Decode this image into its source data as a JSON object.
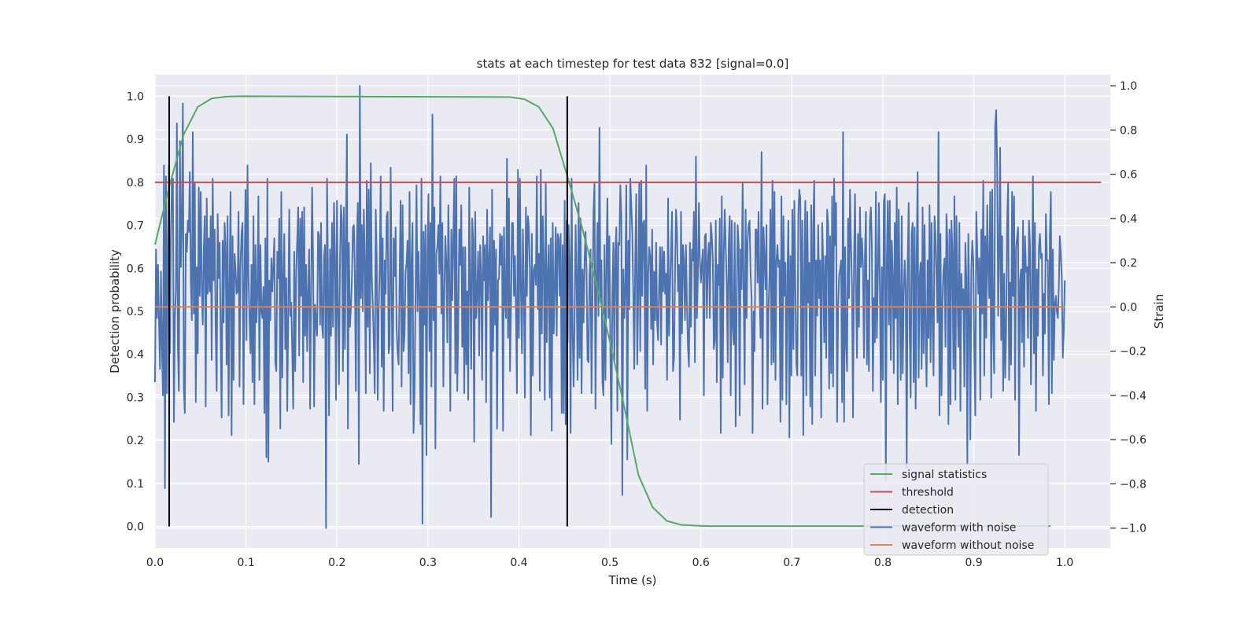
{
  "chart_data": {
    "type": "line",
    "title": "stats at each timestep for test data 832 [signal=0.0]",
    "xlabel": "Time (s)",
    "ylabel": "Detection probability",
    "y2label": "Strain",
    "xlim": [
      0.0,
      1.05
    ],
    "ylim": [
      -0.05,
      1.05
    ],
    "y2lim": [
      -1.09,
      1.05
    ],
    "xticks": [
      "0.0",
      "0.1",
      "0.2",
      "0.3",
      "0.4",
      "0.5",
      "0.6",
      "0.7",
      "0.8",
      "0.9",
      "1.0"
    ],
    "yticks": [
      "0.0",
      "0.1",
      "0.2",
      "0.3",
      "0.4",
      "0.5",
      "0.6",
      "0.7",
      "0.8",
      "0.9",
      "1.0"
    ],
    "y2ticks": [
      "−1.0",
      "−0.8",
      "−0.6",
      "−0.4",
      "−0.2",
      "0.0",
      "0.2",
      "0.4",
      "0.6",
      "0.8",
      "1.0"
    ],
    "grid": true,
    "legend_position": "lower-right",
    "series": [
      {
        "name": "signal statistics",
        "color": "#55a868",
        "axis": "left",
        "x": [
          0.0,
          0.0156,
          0.0313,
          0.0469,
          0.0625,
          0.0781,
          0.0938,
          0.3906,
          0.4063,
          0.4219,
          0.4375,
          0.4531,
          0.4688,
          0.4844,
          0.5,
          0.5156,
          0.5313,
          0.5469,
          0.5625,
          0.5781,
          0.5938,
          0.6094,
          0.65,
          0.9844
        ],
        "values": [
          0.655,
          0.79,
          0.91,
          0.975,
          0.995,
          0.999,
          1.0,
          0.998,
          0.993,
          0.975,
          0.925,
          0.815,
          0.7,
          0.57,
          0.43,
          0.28,
          0.12,
          0.045,
          0.013,
          0.004,
          0.002,
          0.001,
          0.001,
          0.001
        ]
      },
      {
        "name": "threshold",
        "color": "#c44e52",
        "axis": "left",
        "x": [
          0.0,
          1.04
        ],
        "values": [
          0.8,
          0.8
        ]
      },
      {
        "name": "detection",
        "color": "#000000",
        "axis": "left",
        "segments": [
          {
            "x": 0.0156,
            "y0": 0.0,
            "y1": 1.0
          },
          {
            "x": 0.4531,
            "y0": 0.0,
            "y1": 1.0
          }
        ]
      },
      {
        "name": "waveform with noise",
        "color": "#4c72b0",
        "axis": "right",
        "x_range": [
          0.0,
          1.0
        ],
        "values": [
          -0.34,
          0.26,
          -0.05,
          0.19,
          -0.06,
          -0.28,
          0.16,
          -0.19,
          -0.4,
          0.64,
          -0.82,
          0.59,
          -0.39,
          0.29,
          0.64,
          -0.21,
          0.31,
          0.57,
          0.58,
          -0.52,
          -0.05,
          0.08,
          0.83,
          -0.18,
          -0.38,
          0.75,
          0.18,
          0.38,
          0.92,
          -0.37,
          -0.48,
          0.33,
          0.25,
          0.39,
          0.34,
          0.61,
          0.12,
          -0.06,
          0.79,
          -0.03,
          0.56,
          -0.43,
          0.18,
          -0.21,
          0.54,
          0.05,
          0.52,
          0.09,
          -0.08,
          0.25,
          0.41,
          -0.45,
          0.49,
          0.06,
          0.31,
          0.07,
          0.41,
          -0.24,
          0.58,
          0.12,
          0.35,
          -0.11,
          -0.38,
          0.42,
          0.13,
          0.29,
          -0.13,
          -0.5,
          0.3,
          -0.07,
          0.38,
          0.28,
          -0.26,
          0.41,
          -0.49,
          0.11,
          0.52,
          -0.58,
          0.32,
          -0.33,
          0.24,
          0.17,
          0.06,
          0.07,
          0.43,
          -0.36,
          0.19,
          0.33,
          0.38,
          -0.44,
          0.13,
          0.53,
          -0.15,
          0.64,
          0.14,
          -0.05,
          -0.21,
          0.19,
          -0.34,
          0.41,
          -0.44,
          0.28,
          -0.07,
          0.06,
          0.5,
          -0.33,
          0.28,
          -0.02,
          -0.05,
          0.09,
          -0.48,
          0.31,
          -0.68,
          0.58,
          -0.7,
          0.12,
          -0.06,
          0.22,
          0.07,
          0.19,
          0.31,
          -0.25,
          -0.29,
          0.25,
          0.13,
          0.4,
          -0.55,
          0.52,
          -0.32,
          0.14,
          0.33,
          -0.19,
          0.13,
          -0.47,
          -0.02,
          0.44,
          -0.04,
          0.02,
          -0.19,
          -0.46,
          0.25,
          -0.29,
          0.16,
          0.3,
          0.45,
          -0.22,
          0.4,
          0.05,
          0.43,
          -0.34,
          0.45,
          -0.13,
          0.19,
          -0.2,
          0.07,
          0.26,
          -0.46,
          0.09,
          0.54,
          0.2,
          -0.45,
          0.01,
          -0.07,
          -0.13,
          0.34,
          0.32,
          -0.08,
          0.38,
          -0.08,
          -0.14,
          0.23,
          0.28,
          -1.0,
          0.58,
          0.13,
          -0.49,
          0.26,
          -0.13,
          0.38,
          -0.09,
          0.47,
          0.23,
          -0.42,
          0.48,
          -0.01,
          -0.35,
          0.19,
          0.46,
          0.38,
          -0.29,
          0.45,
          -0.19,
          0.31,
          0.78,
          -0.55,
          0.29,
          -0.09,
          -0.01,
          0.12,
          0.36,
          0.37,
          0.14,
          -0.38,
          0.3,
          0.47,
          -0.71,
          1.0,
          0.04,
          0.37,
          -0.02,
          0.44,
          0.21,
          -0.39,
          0.57,
          -0.09,
          0.53,
          -0.3,
          0.65,
          0.14,
          0.01,
          -0.15,
          -0.39,
          0.44,
          0.21,
          -0.42,
          -0.01,
          0.18,
          0.59,
          -0.27,
          0.31,
          -0.47,
          0.21,
          0.06,
          0.41,
          0.43,
          -0.21,
          -0.17,
          0.63,
          0.08,
          -0.47,
          0.31,
          0.14,
          0.36,
          -0.1,
          -0.21,
          -0.26,
          0.12,
          0.48,
          -0.36,
          0.46,
          -0.2,
          -0.12,
          0.16,
          0.2,
          0.3,
          -0.3,
          0.52,
          -0.44,
          0.21,
          0.38,
          -0.57,
          -0.39,
          0.05,
          0.55,
          -0.02,
          0.25,
          0.03,
          -0.53,
          0.58,
          -0.98,
          0.34,
          -0.08,
          0.37,
          -0.67,
          0.24,
          0.51,
          -0.2,
          0.38,
          -0.36,
          0.87,
          -0.06,
          0.45,
          -0.64,
          0.24,
          0.28,
          0.37,
          0.15,
          0.59,
          -0.03,
          0.38,
          -0.36,
          0.07,
          0.32,
          0.2,
          -0.16,
          0.46,
          0.14,
          -0.47,
          0.35,
          0.03,
          0.31,
          0.58,
          -0.3,
          0.59,
          -0.38,
          -0.07,
          0.35,
          0.19,
          0.46,
          -0.18,
          0.27,
          -0.39,
          0.27,
          -0.26,
          0.07,
          -0.42,
          0.54,
          0.12,
          -0.28,
          0.4,
          0.3,
          -0.61,
          0.43,
          -0.05,
          0.06,
          0.25,
          -0.22,
          0.28,
          0.15,
          -0.33,
          0.32,
          0.12,
          0.28,
          -0.43,
          0.44,
          0.03,
          0.2,
          0.36,
          -0.95,
          0.53,
          -0.2,
          0.3,
          -0.08,
          0.26,
          -0.55,
          0.12,
          0.13,
          0.33,
          0.19,
          0.32,
          -0.56,
          0.36,
          0.03,
          -0.05,
          0.67,
          -0.14,
          0.49,
          -0.29,
          -0.02,
          0.38,
          0.38,
          0.05,
          0.23,
          -0.02,
          -0.39,
          0.62,
          -0.14,
          0.58,
          0.08,
          -0.21,
          0.35,
          0.06,
          -0.41,
          0.45,
          0.05,
          0.41,
          0.36,
          0.17,
          -0.58,
          0.33,
          -0.31,
          0.17,
          0.19,
          0.1,
          0.59,
          -0.01,
          0.24,
          -0.38,
          0.62,
          -0.12,
          0.41,
          0.19,
          -0.42,
          0.56,
          -0.16,
          0.13,
          0.28,
          -0.41,
          0.31,
          -0.56,
          0.38,
          -0.12,
          0.08,
          0.36,
          -0.13,
          0.33,
          0.31,
          0.05,
          0.33,
          -0.48,
          0.28,
          -0.48,
          0.48,
          -0.53,
          0.39,
          -0.16,
          0.37,
          0.21,
          -0.57,
          0.58,
          -0.11,
          -0.36,
          -0.05,
          0.37,
          0.14,
          -0.33,
          0.47,
          -0.23,
          0.4,
          -0.39,
          0.17,
          -0.07,
          0.21,
          0.34,
          0.16,
          -0.24,
          -0.25,
          0.15,
          0.26,
          -0.39,
          0.03,
          0.43,
          0.56,
          -0.46,
          0.12,
          0.38,
          -0.04,
          0.81,
          0.04,
          0.21,
          -0.34,
          -0.4,
          0.28,
          -0.33,
          0.19,
          0.49,
          -0.05,
          0.32,
          -0.22,
          -0.62,
          0.07,
          0.29,
          -0.25,
          0.25,
          0.36,
          -0.47,
          0.29,
          0.28,
          0.55,
          0.41,
          -0.85,
          0.17,
          -0.05,
          0.09,
          0.55,
          -0.69,
          0.3,
          -0.01,
          0.58,
          0.46,
          0.34,
          0.06,
          -0.28,
          0.22,
          0.51,
          -0.26,
          0.07,
          0.56,
          -0.2,
          0.57,
          0.05,
          0.38,
          0.39,
          -0.37,
          0.64,
          -0.47,
          0.15,
          0.27,
          0.23,
          -0.1,
          0.35,
          -0.26,
          0.16,
          -0.06,
          0.29,
          -0.07,
          -0.15,
          0.1,
          0.27,
          -0.17,
          0.27,
          0.07,
          0.25,
          0.06,
          0.15,
          -0.33,
          0.49,
          -0.13,
          0.09,
          0.26,
          0.43,
          -0.29,
          -0.23,
          0.15,
          0.44,
          0.34,
          0.07,
          0.19,
          -0.51,
          0.43,
          -0.12,
          0.28,
          0.21,
          -0.06,
          0.28,
          0.01,
          -0.18,
          -0.27,
          0.29,
          -0.09,
          0.26,
          0.21,
          0.43,
          -0.25,
          0.68,
          -0.05,
          0.14,
          0.47,
          0.21,
          0.11,
          0.2,
          0.26,
          -0.4,
          0.32,
          0.33,
          -0.05,
          0.21,
          0.29,
          -0.05,
          0.38,
          0.32,
          0.22,
          -0.19,
          -0.15,
          0.39,
          -0.34,
          0.19,
          0.1,
          0.4,
          -0.57,
          0.5,
          -0.32,
          0.24,
          0.44,
          0.27,
          0.11,
          -0.25,
          0.29,
          0.41,
          -0.4,
          0.39,
          -0.09,
          -0.17,
          0.38,
          -0.54,
          0.01,
          0.37,
          0.28,
          -0.49,
          0.26,
          0.08,
          0.56,
          0.08,
          -0.35,
          0.44,
          -0.05,
          0.3,
          0.37,
          0.39,
          0.15,
          0.04,
          -0.57,
          -0.02,
          -0.2,
          0.35,
          0.35,
          0.11,
          0.43,
          0.08,
          -0.14,
          0.7,
          -0.46,
          0.36,
          0.22,
          0.08,
          0.37,
          -0.44,
          -0.02,
          0.14,
          0.44,
          -0.26,
          0.57,
          -0.25,
          0.52,
          -0.33,
          0.21,
          0.28,
          0.18,
          0.21,
          -0.52,
          0.5,
          -0.42,
          0.41,
          0.05,
          0.2,
          -0.44,
          0.13,
          0.39,
          -0.59,
          0.23,
          -0.31,
          0.44,
          -0.19,
          0.48,
          0.1,
          -0.26,
          -0.31,
          0.42,
          0.53,
          0.49,
          -0.31,
          0.39,
          -0.58,
          0.15,
          0.48,
          -0.4,
          0.43,
          0.02,
          0.2,
          -0.45,
          0.46,
          -0.53,
          0.36,
          0.57,
          -0.31,
          0.21,
          -0.04,
          0.37,
          0.04,
          0.21,
          -0.5,
          0.38,
          0.2,
          -0.16,
          0.23,
          -0.23,
          0.44,
          0.37,
          -0.37,
          0.32,
          -0.3,
          0.5,
          -0.36,
          0.58,
          0.28,
          0.47,
          -0.52,
          -0.01,
          0.14,
          0.17,
          0.21,
          -0.43,
          0.79,
          -0.52,
          0.27,
          -0.16,
          -0.29,
          0.4,
          0.04,
          0.53,
          0.28,
          0.09,
          -0.5,
          0.2,
          0.51,
          0.07,
          -0.23,
          0.33,
          -0.09,
          0.45,
          0.18,
          0.31,
          0.19,
          -0.23,
          0.23,
          0.43,
          -0.26,
          0.12,
          -0.29,
          0.39,
          0.45,
          0.27,
          -0.38,
          0.04,
          -0.16,
          0.52,
          -0.14,
          0.13,
          0.47,
          0.11,
          -0.43,
          0.18,
          -0.33,
          0.48,
          0.51,
          -0.78,
          0.2,
          0.48,
          -0.08,
          0.48,
          -0.24,
          0.3,
          0.15,
          -0.3,
          0.38,
          -0.05,
          0.54,
          -0.44,
          0.44,
          0.05,
          -0.33,
          0.41,
          -0.3,
          0.05,
          0.21,
          0.09,
          -0.73,
          0.21,
          0.47,
          -0.11,
          -0.41,
          0.33,
          0.38,
          -0.34,
          0.36,
          -0.46,
          0.23,
          0.61,
          -0.32,
          0.13,
          0.2,
          -0.28,
          0.45,
          -0.21,
          0.37,
          -0.12,
          -0.36,
          0.21,
          -0.14,
          0.46,
          -0.25,
          0.38,
          -0.07,
          -0.31,
          0.41,
          0.32,
          0.14,
          -0.07,
          0.79,
          -0.49,
          0.33,
          -0.4,
          0.03,
          0.17,
          0.22,
          -0.18,
          0.42,
          0.28,
          -0.53,
          0.35,
          -0.44,
          0.39,
          0.25,
          -0.28,
          0.5,
          -0.42,
          0.41,
          0.07,
          -0.18,
          0.38,
          -0.47,
          0.15,
          -0.01,
          0.08,
          -0.36,
          0.29,
          0.13,
          -0.71,
          0.33,
          0.01,
          -0.6,
          0.17,
          0.3,
          0.21,
          -0.22,
          -0.49,
          0.43,
          0.25,
          0.06,
          0.22,
          -0.42,
          0.35,
          -0.03,
          0.57,
          -0.31,
          0.32,
          -0.14,
          0.46,
          0.18,
          0.04,
          0.52,
          -0.41,
          0.53,
          -0.13,
          -0.3,
          0.82,
          0.89,
          0.63,
          -0.04,
          0.24,
          0.72,
          -0.15,
          0.32,
          -0.38,
          0.15,
          -0.32,
          -0.11,
          0.38,
          0.56,
          -0.33,
          0.11,
          -0.26,
          0.52,
          0.05,
          0.5,
          -0.42,
          0.27,
          0.31,
          0.36,
          -0.67,
          0.12,
          0.17,
          -0.16,
          0.39,
          -0.27,
          0.32,
          0.16,
          0.18,
          -0.14,
          0.39,
          0.28,
          -0.35,
          0.06,
          0.59,
          -0.21,
          0.38,
          -0.47,
          0.17,
          -0.13,
          0.27,
          0.33,
          0.22,
          0.24,
          -0.31,
          0.06,
          -0.12,
          0.42,
          0.21,
          0.21,
          -0.44,
          0.32,
          0.52,
          -0.39,
          0.26,
          -0.24,
          0.01,
          0.05,
          -0.02,
          -0.05,
          0.09,
          0.32,
          0.24,
          0.13,
          -0.23,
          -0.11,
          0.12
        ]
      },
      {
        "name": "waveform without noise",
        "color": "#dd8452",
        "axis": "right",
        "x": [
          0.0,
          1.0
        ],
        "values": [
          0.0,
          0.0
        ]
      }
    ]
  }
}
